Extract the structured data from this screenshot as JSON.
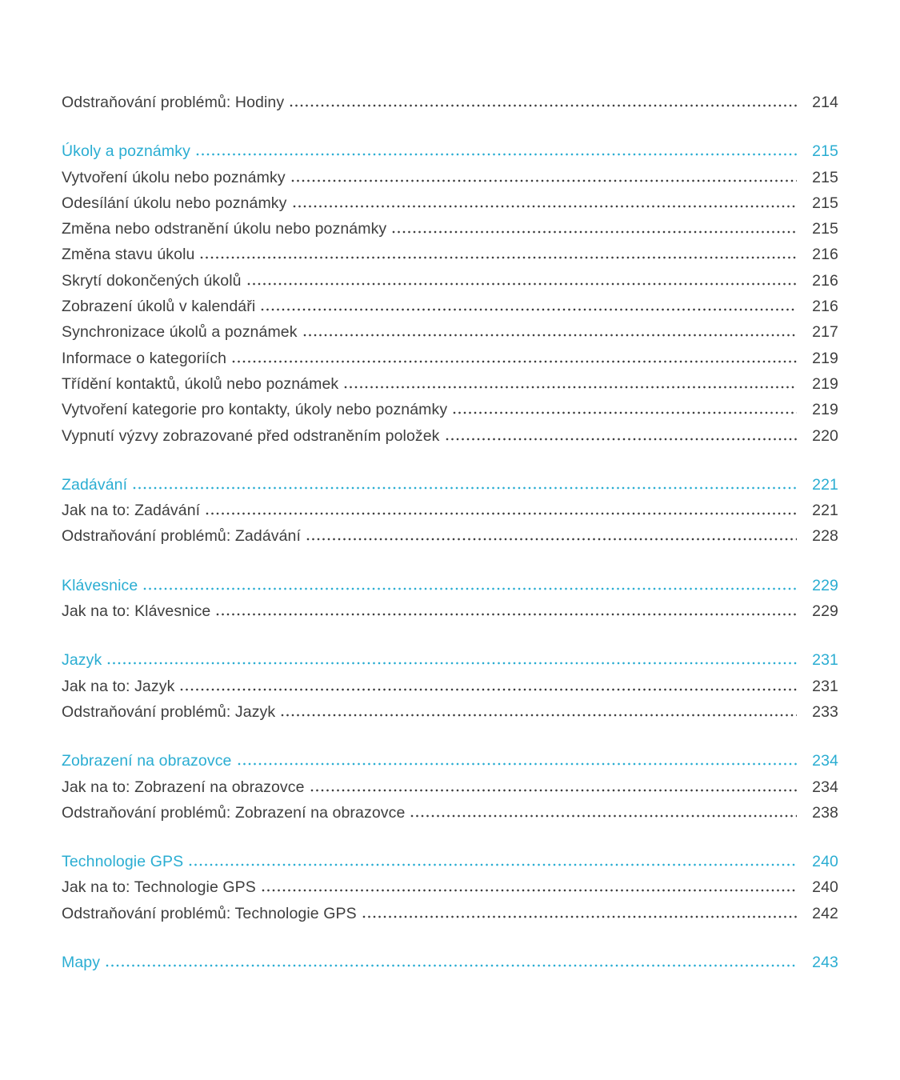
{
  "page": {
    "background_color": "#ffffff",
    "text_color": "#3e3e3e",
    "accent_color": "#2aadd2"
  },
  "toc": {
    "groups": [
      {
        "rows": [
          {
            "type": "entry",
            "label": "Odstraňování problémů: Hodiny",
            "page": "214"
          }
        ]
      },
      {
        "rows": [
          {
            "type": "heading",
            "label": "Úkoly a poznámky",
            "page": "215"
          },
          {
            "type": "entry",
            "label": "Vytvoření úkolu nebo poznámky",
            "page": "215"
          },
          {
            "type": "entry",
            "label": "Odesílání úkolu nebo poznámky",
            "page": "215"
          },
          {
            "type": "entry",
            "label": "Změna nebo odstranění úkolu nebo poznámky",
            "page": "215"
          },
          {
            "type": "entry",
            "label": "Změna stavu úkolu",
            "page": "216"
          },
          {
            "type": "entry",
            "label": "Skrytí dokončených úkolů",
            "page": "216"
          },
          {
            "type": "entry",
            "label": "Zobrazení úkolů v kalendáři",
            "page": "216"
          },
          {
            "type": "entry",
            "label": "Synchronizace úkolů a poznámek",
            "page": "217"
          },
          {
            "type": "entry",
            "label": "Informace o kategoriích",
            "page": "219"
          },
          {
            "type": "entry",
            "label": "Třídění kontaktů, úkolů nebo poznámek",
            "page": "219"
          },
          {
            "type": "entry",
            "label": "Vytvoření kategorie pro kontakty, úkoly nebo poznámky",
            "page": "219"
          },
          {
            "type": "entry",
            "label": "Vypnutí výzvy zobrazované před odstraněním položek",
            "page": "220"
          }
        ]
      },
      {
        "rows": [
          {
            "type": "heading",
            "label": "Zadávání",
            "page": "221"
          },
          {
            "type": "entry",
            "label": "Jak na to: Zadávání",
            "page": "221"
          },
          {
            "type": "entry",
            "label": "Odstraňování problémů: Zadávání",
            "page": "228"
          }
        ]
      },
      {
        "rows": [
          {
            "type": "heading",
            "label": "Klávesnice",
            "page": "229"
          },
          {
            "type": "entry",
            "label": "Jak na to: Klávesnice",
            "page": "229"
          }
        ]
      },
      {
        "rows": [
          {
            "type": "heading",
            "label": "Jazyk",
            "page": "231"
          },
          {
            "type": "entry",
            "label": "Jak na to: Jazyk",
            "page": "231"
          },
          {
            "type": "entry",
            "label": "Odstraňování problémů: Jazyk",
            "page": "233"
          }
        ]
      },
      {
        "rows": [
          {
            "type": "heading",
            "label": "Zobrazení na obrazovce",
            "page": "234"
          },
          {
            "type": "entry",
            "label": "Jak na to: Zobrazení na obrazovce",
            "page": "234"
          },
          {
            "type": "entry",
            "label": "Odstraňování problémů: Zobrazení na obrazovce",
            "page": "238"
          }
        ]
      },
      {
        "rows": [
          {
            "type": "heading",
            "label": "Technologie GPS",
            "page": "240"
          },
          {
            "type": "entry",
            "label": "Jak na to: Technologie GPS",
            "page": "240"
          },
          {
            "type": "entry",
            "label": "Odstraňování problémů: Technologie GPS",
            "page": "242"
          }
        ]
      },
      {
        "rows": [
          {
            "type": "heading",
            "label": "Mapy",
            "page": "243"
          }
        ]
      }
    ]
  }
}
